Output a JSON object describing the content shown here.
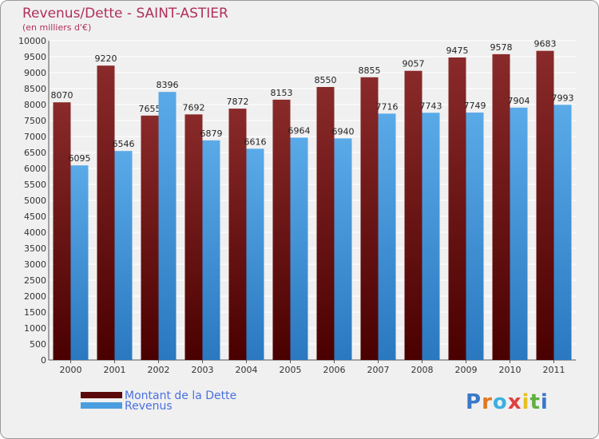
{
  "header": {
    "title": "Revenus/Dette - SAINT-ASTIER",
    "subtitle": "(en milliers d'€)"
  },
  "chart_data": {
    "type": "bar",
    "categories": [
      "2000",
      "2001",
      "2002",
      "2003",
      "2004",
      "2005",
      "2006",
      "2007",
      "2008",
      "2009",
      "2010",
      "2011"
    ],
    "series": [
      {
        "name": "Montant de la Dette",
        "values": [
          8070,
          9220,
          7655,
          7692,
          7872,
          8153,
          8550,
          8855,
          9057,
          9475,
          9578,
          9683
        ],
        "color": "#7a1a1a"
      },
      {
        "name": "Revenus",
        "values": [
          6095,
          6546,
          8396,
          6879,
          6616,
          6964,
          6940,
          7716,
          7743,
          7749,
          7904,
          7993
        ],
        "color": "#4a9ee0"
      }
    ],
    "ylim": [
      0,
      10000
    ],
    "ytick_step": 500,
    "grid": true,
    "legend_position": "bottom-left"
  },
  "legend": {
    "items": [
      {
        "label": "Montant de la Dette",
        "color": "#5a0a0a"
      },
      {
        "label": "Revenus",
        "color": "#4a9ee0"
      }
    ]
  },
  "logo": {
    "letters": [
      "P",
      "r",
      "o",
      "x",
      "i",
      "t",
      "i"
    ],
    "colors": [
      "#3a78c8",
      "#e07820",
      "#3ab0e0",
      "#e04040",
      "#e8c020",
      "#60b040",
      "#3a78c8"
    ]
  }
}
